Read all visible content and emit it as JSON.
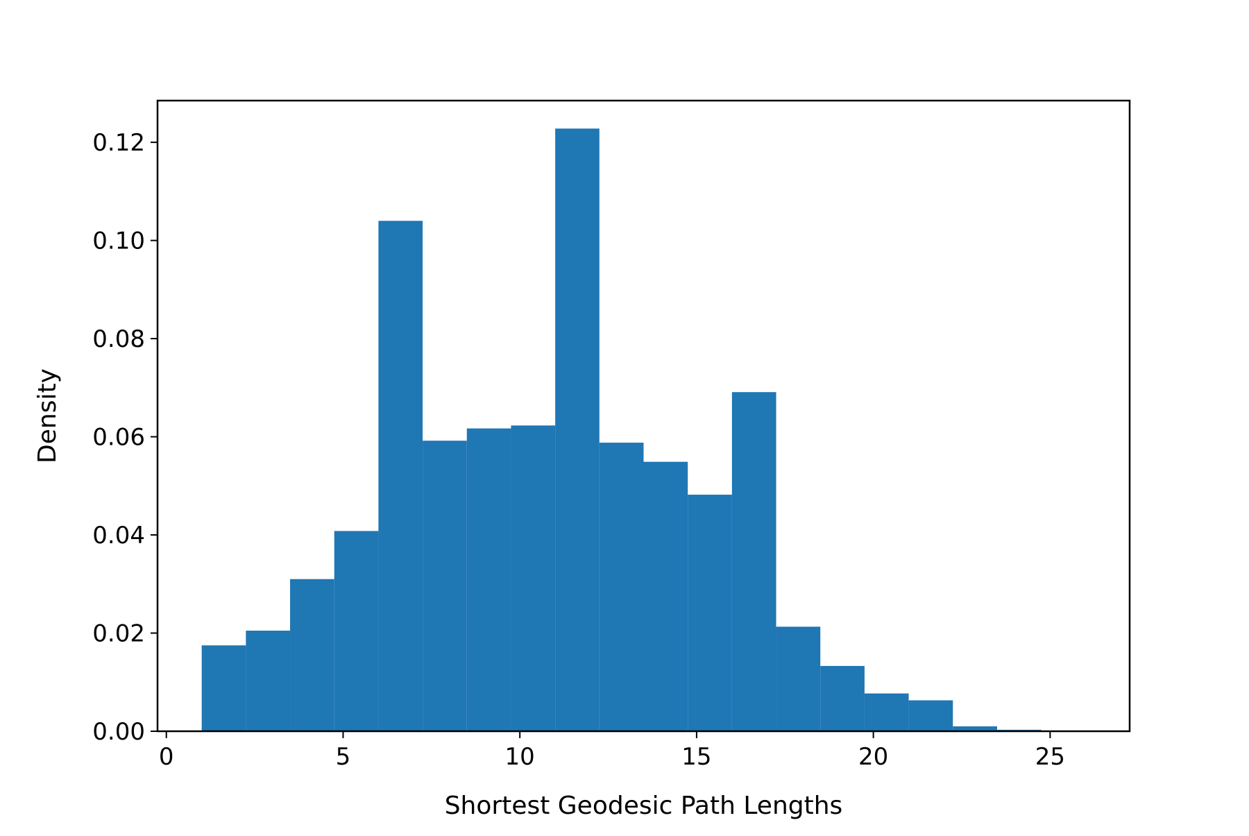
{
  "chart_data": {
    "type": "bar",
    "subtype": "histogram",
    "title": "",
    "xlabel": "Shortest Geodesic Path Lengths",
    "ylabel": "Density",
    "bin_edges": [
      1.0,
      2.25,
      3.5,
      4.75,
      6.0,
      7.25,
      8.5,
      9.75,
      11.0,
      12.25,
      13.5,
      14.75,
      16.0,
      17.25,
      18.5,
      19.75,
      21.0,
      22.25,
      23.5,
      24.75,
      26.0
    ],
    "values": [
      0.0175,
      0.0205,
      0.031,
      0.0408,
      0.104,
      0.0592,
      0.0617,
      0.0623,
      0.1228,
      0.0588,
      0.0549,
      0.0482,
      0.0691,
      0.0213,
      0.0133,
      0.0077,
      0.0063,
      0.001,
      0.0003,
      0.0
    ],
    "xlim": [
      -0.25,
      27.25
    ],
    "ylim": [
      0,
      0.1285
    ],
    "xticks": [
      0,
      5,
      10,
      15,
      20,
      25
    ],
    "xtick_labels": [
      "0",
      "5",
      "10",
      "15",
      "20",
      "25"
    ],
    "yticks": [
      0.0,
      0.02,
      0.04,
      0.06,
      0.08,
      0.1,
      0.12
    ],
    "ytick_labels": [
      "0.00",
      "0.02",
      "0.04",
      "0.06",
      "0.08",
      "0.10",
      "0.12"
    ],
    "grid": false,
    "legend": "none",
    "bar_color": "#1f77b4"
  }
}
